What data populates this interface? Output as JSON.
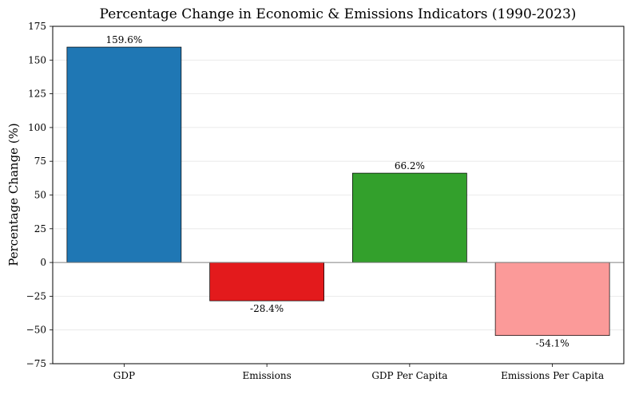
{
  "chart_data": {
    "type": "bar",
    "title": "Percentage Change in Economic & Emissions Indicators (1990-2023)",
    "xlabel": "",
    "ylabel": "Percentage Change (%)",
    "categories": [
      "GDP",
      "Emissions",
      "GDP Per Capita",
      "Emissions Per Capita"
    ],
    "values": [
      159.6,
      -28.4,
      66.2,
      -54.1
    ],
    "value_labels": [
      "159.6%",
      "-28.4%",
      "66.2%",
      "-54.1%"
    ],
    "colors": [
      "#1f77b4",
      "#e31a1c",
      "#33a02c",
      "#fb9a99"
    ],
    "ylim": [
      -75,
      175
    ],
    "yticks": [
      -75,
      -50,
      -25,
      0,
      25,
      50,
      75,
      100,
      125,
      150,
      175
    ],
    "ytick_labels": [
      "−75",
      "−50",
      "−25",
      "0",
      "25",
      "50",
      "75",
      "100",
      "125",
      "150",
      "175"
    ],
    "grid": "horizontal",
    "legend": "none"
  }
}
